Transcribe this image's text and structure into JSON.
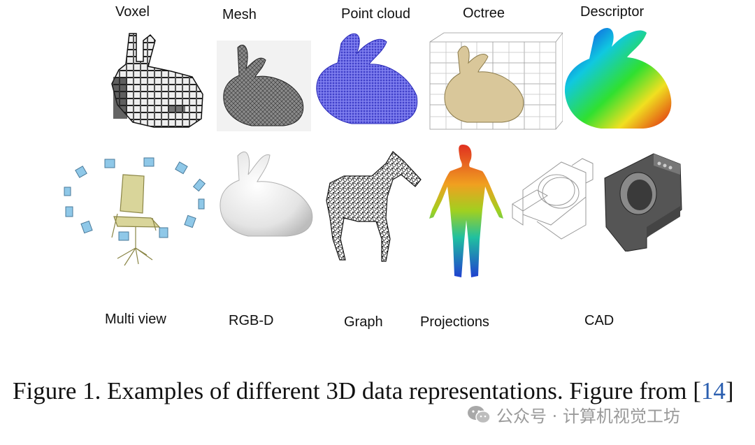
{
  "figure": {
    "top_labels": [
      "Voxel",
      "Mesh",
      "Point cloud",
      "Octree",
      "Descriptor"
    ],
    "bottom_labels": [
      "Multi view",
      "RGB-D",
      "Graph",
      "Projections",
      "CAD"
    ]
  },
  "caption": {
    "text": "Figure 1. Examples of different 3D data representations. Figure from [",
    "ref": "14",
    "close": "]"
  },
  "watermark": {
    "text": "公众号 · 计算机视觉工坊",
    "icon": "wechat-icon"
  },
  "colors": {
    "point_cloud": "#3b3bd6",
    "octree_fill": "#d9c79a",
    "chair": "#d9d59a",
    "cad_dark": "#555555",
    "ref_link": "#2b5fb0"
  }
}
